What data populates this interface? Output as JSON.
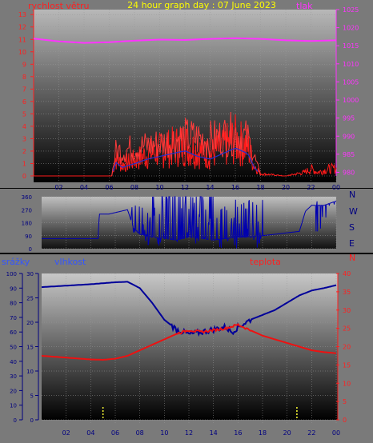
{
  "title": "24 hour graph day : 07 June 2023",
  "colors": {
    "wind": "#ff1a1a",
    "pressure": "#ff33ff",
    "direction": "#0000b0",
    "humidity": "#000099",
    "temperature": "#ee1111",
    "rain": "#ffff33",
    "title": "#ffff00"
  },
  "chart_data": [
    {
      "type": "line",
      "name": "wind-pressure",
      "left_label": "rychlost větru",
      "right_label": "tlak",
      "y_left_ticks": [
        "0",
        "1",
        "2",
        "3",
        "4",
        "5",
        "6",
        "7",
        "8",
        "9",
        "10",
        "11",
        "12",
        "13"
      ],
      "y_right_ticks": [
        "980",
        "985",
        "990",
        "995",
        "1000",
        "1005",
        "1010",
        "1015",
        "1020",
        "1025"
      ],
      "x_ticks": [
        "02",
        "04",
        "06",
        "08",
        "10",
        "12",
        "14",
        "16",
        "18",
        "20",
        "22",
        "00"
      ],
      "ylim_left": [
        0,
        13.4
      ],
      "ylim_right": [
        979,
        1025
      ],
      "xlim": [
        0,
        24
      ],
      "pressure": [
        [
          0,
          1017.0
        ],
        [
          2,
          1016.2
        ],
        [
          4,
          1015.8
        ],
        [
          6,
          1016.0
        ],
        [
          8,
          1016.4
        ],
        [
          10,
          1016.7
        ],
        [
          12,
          1016.6
        ],
        [
          14,
          1016.9
        ],
        [
          16,
          1017.1
        ],
        [
          18,
          1016.9
        ],
        [
          20,
          1016.5
        ],
        [
          22,
          1016.3
        ],
        [
          24,
          1016.5
        ]
      ],
      "wind_envelope": [
        [
          0,
          0
        ],
        [
          6.2,
          0
        ],
        [
          6.5,
          2.5
        ],
        [
          7,
          1.5
        ],
        [
          8,
          2.2
        ],
        [
          9,
          3
        ],
        [
          10,
          3.5
        ],
        [
          11,
          4
        ],
        [
          12,
          4.5
        ],
        [
          13,
          3.5
        ],
        [
          14,
          3
        ],
        [
          15,
          4
        ],
        [
          16,
          5
        ],
        [
          16.5,
          4.5
        ],
        [
          17,
          4
        ],
        [
          17.5,
          1.5
        ],
        [
          18,
          0.3
        ],
        [
          20,
          0
        ],
        [
          21.5,
          0.5
        ],
        [
          22,
          1
        ],
        [
          22.5,
          0.5
        ],
        [
          23.5,
          1
        ],
        [
          24,
          1
        ]
      ],
      "gust_envelope": [
        [
          6.2,
          0
        ],
        [
          6.5,
          3
        ],
        [
          8,
          3.5
        ],
        [
          10,
          4
        ],
        [
          12,
          4.8
        ],
        [
          14,
          4.5
        ],
        [
          16,
          5.3
        ],
        [
          17,
          4.5
        ],
        [
          17.8,
          1
        ],
        [
          18,
          0
        ]
      ]
    },
    {
      "type": "line",
      "name": "wind-direction",
      "right_labels": [
        "N",
        "W",
        "S",
        "E",
        "N"
      ],
      "y_ticks": [
        "0",
        "90",
        "180",
        "270",
        "360"
      ],
      "ylim": [
        0,
        360
      ],
      "xlim": [
        0,
        24
      ],
      "direction_base": [
        [
          0,
          70
        ],
        [
          4.6,
          70
        ],
        [
          4.7,
          240
        ],
        [
          5.5,
          240
        ],
        [
          6,
          250
        ],
        [
          6.5,
          260
        ],
        [
          7,
          270
        ],
        [
          7.5,
          140
        ],
        [
          8,
          100
        ],
        [
          9,
          80
        ],
        [
          10,
          70
        ],
        [
          11,
          60
        ],
        [
          12,
          80
        ],
        [
          13,
          70
        ],
        [
          14,
          60
        ],
        [
          15,
          70
        ],
        [
          16,
          80
        ],
        [
          17,
          80
        ],
        [
          18,
          90
        ],
        [
          19,
          100
        ],
        [
          20,
          110
        ],
        [
          21,
          120
        ],
        [
          21.5,
          260
        ],
        [
          22,
          300
        ],
        [
          23,
          300
        ],
        [
          24,
          330
        ]
      ]
    },
    {
      "type": "line",
      "name": "temperature-humidity-rain",
      "left_label": "srážky",
      "middle_label": "vlhkost",
      "right_label": "teplota",
      "y_rain_ticks": [
        "0",
        "10",
        "20",
        "30",
        "40",
        "50",
        "60",
        "70",
        "80",
        "90",
        "100"
      ],
      "y_humidity_ticks": [
        "0",
        "5",
        "10",
        "15",
        "20",
        "25",
        "30"
      ],
      "y_temperature_ticks": [
        "0",
        "5",
        "10",
        "15",
        "20",
        "25",
        "30",
        "35",
        "40"
      ],
      "x_ticks": [
        "02",
        "04",
        "06",
        "08",
        "10",
        "12",
        "14",
        "16",
        "18",
        "20",
        "22",
        "00"
      ],
      "ylim_humidity": [
        0,
        30
      ],
      "ylim_temperature": [
        0,
        40
      ],
      "xlim": [
        0,
        24
      ],
      "humidity": [
        [
          0,
          27.2
        ],
        [
          2,
          27.5
        ],
        [
          4,
          27.8
        ],
        [
          6,
          28.2
        ],
        [
          7,
          28.3
        ],
        [
          8,
          27
        ],
        [
          9,
          24
        ],
        [
          10,
          20.5
        ],
        [
          11,
          18.5
        ],
        [
          12,
          17.5
        ],
        [
          13,
          18
        ],
        [
          14,
          18.5
        ],
        [
          15,
          19
        ],
        [
          15.5,
          18
        ],
        [
          16,
          19
        ],
        [
          17,
          20.5
        ],
        [
          18,
          21.5
        ],
        [
          19,
          22.5
        ],
        [
          20,
          24
        ],
        [
          21,
          25.5
        ],
        [
          22,
          26.5
        ],
        [
          23,
          27
        ],
        [
          24,
          27.6
        ]
      ],
      "temperature": [
        [
          0,
          17.5
        ],
        [
          2,
          17
        ],
        [
          4,
          16.5
        ],
        [
          5,
          16.4
        ],
        [
          6,
          16.7
        ],
        [
          7,
          17.5
        ],
        [
          8,
          19
        ],
        [
          9,
          20.5
        ],
        [
          10,
          22
        ],
        [
          11,
          23.5
        ],
        [
          12,
          24.5
        ],
        [
          13,
          24
        ],
        [
          14,
          24.5
        ],
        [
          15,
          25
        ],
        [
          16,
          26
        ],
        [
          17,
          24.5
        ],
        [
          18,
          23
        ],
        [
          19,
          22
        ],
        [
          20,
          21
        ],
        [
          21,
          20
        ],
        [
          22,
          19
        ],
        [
          23,
          18.5
        ],
        [
          24,
          18.2
        ]
      ],
      "rain_markers": [
        5.0,
        20.8
      ]
    }
  ]
}
